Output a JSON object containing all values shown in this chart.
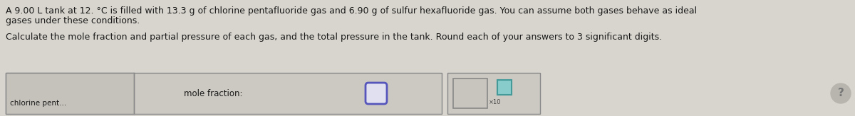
{
  "line1": "A 9.00 L tank at 12. °C is filled with 13.3 g of chlorine pentafluoride gas and 6.90 g of sulfur hexafluoride gas. You can assume both gases behave as ideal",
  "line2": "gases under these conditions.",
  "line3": "Calculate the mole fraction and partial pressure of each gas, and the total pressure in the tank. Round each of your answers to 3 significant digits.",
  "label_mole_fraction": "mole fraction:",
  "row_label": "chlorine pent...",
  "bg_color": "#d8d5ce",
  "text_color": "#1a1a1a",
  "cell_bg": "#ccc9c2",
  "cell_bg2": "#c5c2bb",
  "input_oval_color": "#5555bb",
  "input_oval_fill": "#e0e0f0",
  "second_box_bg": "#ccc9c2",
  "small_sq_fill": "#c8c5be",
  "small_sq_edge": "#888888",
  "teal_fill": "#88cccc",
  "teal_edge": "#449999",
  "qmark_fill": "#b8b5ae",
  "qmark_text": "#777777"
}
